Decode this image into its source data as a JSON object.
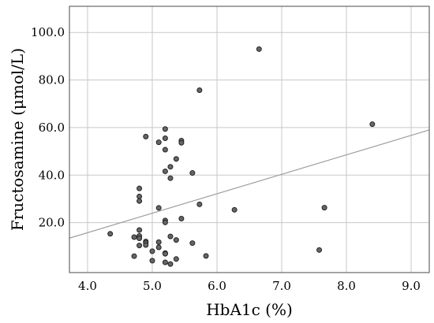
{
  "chart_data": {
    "type": "scatter",
    "xlabel": "HbA1c (%)",
    "ylabel": "Fructosamine (μmol/L)",
    "xlim": [
      3.72,
      9.28
    ],
    "ylim": [
      -1,
      111
    ],
    "x_ticks": [
      "4.0",
      "5.0",
      "6.0",
      "7.0",
      "8.0",
      "9.0"
    ],
    "y_ticks": [
      "20.0",
      "40.0",
      "60.0",
      "80.0",
      "100.0"
    ],
    "grid": true,
    "point_color": "#666666",
    "fit_line_color": "#9e9e9e",
    "fit_line": {
      "x": [
        3.72,
        9.28
      ],
      "y": [
        13.5,
        59.0
      ]
    },
    "series": [
      {
        "points": [
          [
            4.35,
            15.3
          ],
          [
            4.72,
            13.9
          ],
          [
            4.72,
            5.9
          ],
          [
            4.8,
            34.4
          ],
          [
            4.8,
            31.0
          ],
          [
            4.8,
            29.1
          ],
          [
            4.8,
            16.9
          ],
          [
            4.8,
            14.4
          ],
          [
            4.8,
            13.4
          ],
          [
            4.8,
            10.4
          ],
          [
            4.9,
            56.2
          ],
          [
            4.9,
            12.1
          ],
          [
            4.9,
            11.5
          ],
          [
            4.9,
            10.6
          ],
          [
            5.0,
            8.0
          ],
          [
            5.0,
            4.0
          ],
          [
            5.1,
            53.8
          ],
          [
            5.1,
            26.2
          ],
          [
            5.1,
            11.8
          ],
          [
            5.1,
            9.6
          ],
          [
            5.2,
            59.4
          ],
          [
            5.2,
            55.5
          ],
          [
            5.2,
            50.7
          ],
          [
            5.2,
            41.6
          ],
          [
            5.2,
            20.9
          ],
          [
            5.2,
            20.1
          ],
          [
            5.2,
            7.2
          ],
          [
            5.2,
            6.9
          ],
          [
            5.2,
            3.3
          ],
          [
            5.28,
            43.5
          ],
          [
            5.28,
            38.7
          ],
          [
            5.28,
            14.2
          ],
          [
            5.28,
            2.6
          ],
          [
            5.37,
            46.8
          ],
          [
            5.37,
            12.7
          ],
          [
            5.37,
            4.7
          ],
          [
            5.45,
            54.5
          ],
          [
            5.45,
            53.6
          ],
          [
            5.45,
            21.7
          ],
          [
            5.62,
            40.9
          ],
          [
            5.62,
            11.4
          ],
          [
            5.73,
            75.7
          ],
          [
            5.73,
            27.7
          ],
          [
            5.83,
            6.0
          ],
          [
            6.27,
            25.4
          ],
          [
            6.65,
            93.0
          ],
          [
            7.58,
            8.5
          ],
          [
            7.66,
            26.3
          ],
          [
            8.4,
            61.4
          ]
        ]
      }
    ]
  }
}
